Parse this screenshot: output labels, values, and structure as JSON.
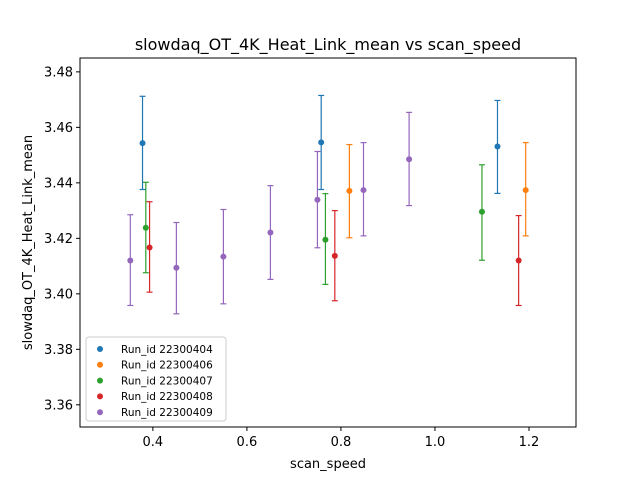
{
  "chart_data": {
    "type": "scatter",
    "title": "slowdaq_OT_4K_Heat_Link_mean vs scan_speed",
    "xlabel": "scan_speed",
    "ylabel": "slowdaq_OT_4K_Heat_Link_mean",
    "xlim": [
      0.245,
      1.3
    ],
    "ylim": [
      3.352,
      3.485
    ],
    "xticks": [
      "0.4",
      "0.6",
      "0.8",
      "1.0",
      "1.2"
    ],
    "yticks": [
      "3.36",
      "3.38",
      "3.40",
      "3.42",
      "3.44",
      "3.46",
      "3.48"
    ],
    "grid": false,
    "legend_position": "lower-left",
    "series": [
      {
        "name": "Run_id 22300404",
        "color": "#1f77b4",
        "points": [
          {
            "x": 0.378,
            "y": 3.4543,
            "lo": 3.4376,
            "hi": 3.4712
          },
          {
            "x": 0.758,
            "y": 3.4546,
            "lo": 3.4376,
            "hi": 3.4715
          },
          {
            "x": 1.133,
            "y": 3.4531,
            "lo": 3.4362,
            "hi": 3.4697
          }
        ]
      },
      {
        "name": "Run_id 22300406",
        "color": "#ff7f0e",
        "points": [
          {
            "x": 0.818,
            "y": 3.4371,
            "lo": 3.4202,
            "hi": 3.4538
          },
          {
            "x": 1.193,
            "y": 3.4374,
            "lo": 3.4209,
            "hi": 3.4545
          }
        ]
      },
      {
        "name": "Run_id 22300407",
        "color": "#2ca02c",
        "points": [
          {
            "x": 0.385,
            "y": 3.4238,
            "lo": 3.4076,
            "hi": 3.4402
          },
          {
            "x": 0.767,
            "y": 3.4195,
            "lo": 3.4034,
            "hi": 3.4361
          },
          {
            "x": 1.1,
            "y": 3.4296,
            "lo": 3.4121,
            "hi": 3.4465
          }
        ]
      },
      {
        "name": "Run_id 22300408",
        "color": "#d62728",
        "points": [
          {
            "x": 0.393,
            "y": 3.4167,
            "lo": 3.4006,
            "hi": 3.4332
          },
          {
            "x": 0.787,
            "y": 3.4137,
            "lo": 3.3975,
            "hi": 3.43
          },
          {
            "x": 1.178,
            "y": 3.412,
            "lo": 3.3958,
            "hi": 3.4282
          }
        ]
      },
      {
        "name": "Run_id 22300409",
        "color": "#9467bd",
        "points": [
          {
            "x": 0.352,
            "y": 3.412,
            "lo": 3.3958,
            "hi": 3.4285
          },
          {
            "x": 0.45,
            "y": 3.4094,
            "lo": 3.3928,
            "hi": 3.4257
          },
          {
            "x": 0.55,
            "y": 3.4134,
            "lo": 3.3964,
            "hi": 3.4304
          },
          {
            "x": 0.65,
            "y": 3.4221,
            "lo": 3.4052,
            "hi": 3.439
          },
          {
            "x": 0.75,
            "y": 3.4339,
            "lo": 3.4166,
            "hi": 3.4513
          },
          {
            "x": 0.848,
            "y": 3.4374,
            "lo": 3.4209,
            "hi": 3.4545
          },
          {
            "x": 0.945,
            "y": 3.4485,
            "lo": 3.4318,
            "hi": 3.4654
          }
        ]
      }
    ]
  }
}
